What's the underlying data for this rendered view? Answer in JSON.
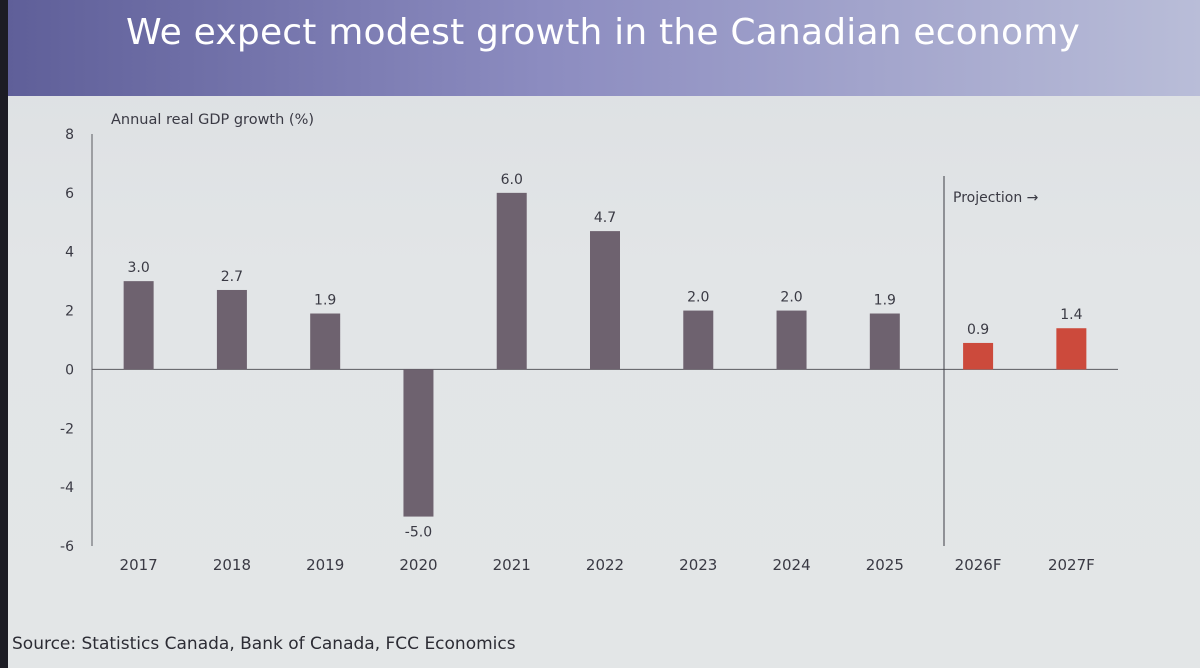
{
  "slide": {
    "title": "We expect modest growth in the Canadian economy",
    "source": "Source: Statistics Canada, Bank of Canada, FCC Economics"
  },
  "chart_data": {
    "type": "bar",
    "ylabel": "Annual real GDP growth (%)",
    "ylim": [
      -6,
      8
    ],
    "yticks": [
      8,
      6,
      4,
      2,
      0,
      -2,
      -4,
      -6
    ],
    "grid": false,
    "categories": [
      "2017",
      "2018",
      "2019",
      "2020",
      "2021",
      "2022",
      "2023",
      "2024",
      "2025",
      "2026F",
      "2027F"
    ],
    "values": [
      3.0,
      2.7,
      1.9,
      -5.0,
      6.0,
      4.7,
      2.0,
      2.0,
      1.9,
      0.9,
      1.4
    ],
    "data_labels": [
      "3.0",
      "2.7",
      "1.9",
      "-5.0",
      "6.0",
      "4.7",
      "2.0",
      "2.0",
      "1.9",
      "0.9",
      "1.4"
    ],
    "projected": [
      false,
      false,
      false,
      false,
      false,
      false,
      false,
      false,
      false,
      true,
      true
    ],
    "annotation": "Projection →",
    "colors": {
      "actual": "#6e626f",
      "projection": "#cc4a3c",
      "axis": "#5a5a60",
      "text": "#3a3a44"
    }
  }
}
